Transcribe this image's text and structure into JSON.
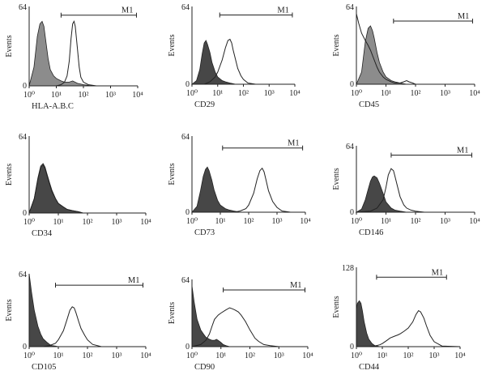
{
  "chart_data": [
    {
      "type": "area",
      "xlabel": "HLA-A.B.C",
      "ylabel": "Events",
      "xscale": "log",
      "xlim": [
        1,
        10000
      ],
      "ylim": [
        0,
        64
      ],
      "ytick_labels": [
        "0",
        "64"
      ],
      "xtick_labels": [
        "10⁰",
        "10¹",
        "10²",
        "10³",
        "10⁴"
      ],
      "marker": {
        "label": "M1",
        "range": [
          15,
          9000
        ],
        "y": 57
      },
      "series": [
        {
          "role": "control",
          "fill": "gray",
          "x": [
            1,
            1.5,
            2,
            2.5,
            3,
            3.5,
            4,
            5,
            6,
            8,
            10,
            15,
            20,
            30,
            40,
            60,
            100,
            200,
            500,
            10000
          ],
          "y": [
            0,
            15,
            40,
            50,
            52,
            48,
            38,
            22,
            13,
            8,
            6,
            4,
            3,
            3,
            4,
            2,
            1,
            0,
            0,
            0
          ]
        },
        {
          "role": "sample",
          "fill": "none",
          "x": [
            1,
            5,
            10,
            15,
            20,
            25,
            30,
            35,
            40,
            45,
            50,
            60,
            70,
            80,
            100,
            150,
            300,
            10000
          ],
          "y": [
            0,
            0,
            0,
            1,
            3,
            8,
            20,
            38,
            50,
            52,
            48,
            30,
            15,
            7,
            3,
            1,
            0,
            0
          ]
        }
      ]
    },
    {
      "type": "area",
      "xlabel": "CD29",
      "ylabel": "Events",
      "xscale": "log",
      "xlim": [
        1,
        10000
      ],
      "ylim": [
        0,
        64
      ],
      "ytick_labels": [
        "0",
        "64"
      ],
      "xtick_labels": [
        "10⁰",
        "10¹",
        "10²",
        "10³",
        "10⁴"
      ],
      "marker": {
        "label": "M1",
        "range": [
          12,
          8000
        ],
        "y": 57
      },
      "series": [
        {
          "role": "control",
          "fill": "dark",
          "x": [
            1,
            1.5,
            2,
            2.5,
            3,
            3.5,
            4,
            5,
            6,
            8,
            10,
            15,
            20,
            30,
            50,
            100,
            10000
          ],
          "y": [
            0,
            3,
            12,
            25,
            34,
            36,
            33,
            26,
            18,
            10,
            6,
            3,
            2,
            1,
            0,
            0,
            0
          ]
        },
        {
          "role": "sample",
          "fill": "none",
          "x": [
            1,
            3,
            5,
            8,
            10,
            15,
            20,
            25,
            30,
            35,
            40,
            50,
            60,
            80,
            100,
            150,
            300,
            10000
          ],
          "y": [
            0,
            0,
            2,
            6,
            10,
            20,
            30,
            36,
            37,
            34,
            28,
            20,
            13,
            7,
            4,
            1,
            0,
            0
          ]
        }
      ]
    },
    {
      "type": "area",
      "xlabel": "CD45",
      "ylabel": "Events",
      "xscale": "log",
      "xlim": [
        1,
        10000
      ],
      "ylim": [
        0,
        64
      ],
      "ytick_labels": [
        "0",
        "64"
      ],
      "xtick_labels": [
        "10⁰",
        "10¹",
        "10²",
        "10³",
        "10⁴"
      ],
      "marker": {
        "label": "M1",
        "range": [
          18,
          8500
        ],
        "y": 52
      },
      "series": [
        {
          "role": "control",
          "fill": "gray",
          "x": [
            1,
            1.5,
            2,
            2.5,
            3,
            3.5,
            4,
            5,
            6,
            8,
            10,
            15,
            20,
            30,
            50,
            100,
            10000
          ],
          "y": [
            0,
            10,
            35,
            46,
            48,
            44,
            38,
            26,
            18,
            10,
            6,
            3,
            2,
            1,
            0,
            0,
            0
          ]
        },
        {
          "role": "sample",
          "fill": "none",
          "x": [
            1,
            1.2,
            1.5,
            2,
            2.5,
            3,
            4,
            5,
            6,
            8,
            10,
            15,
            20,
            30,
            40,
            50,
            60,
            80,
            100,
            10000
          ],
          "y": [
            58,
            50,
            42,
            36,
            32,
            28,
            20,
            14,
            10,
            6,
            4,
            2,
            1,
            1,
            2,
            3,
            2,
            1,
            0,
            0
          ]
        }
      ]
    },
    {
      "type": "area",
      "xlabel": "CD34",
      "ylabel": "Events",
      "xscale": "log",
      "xlim": [
        1,
        10000
      ],
      "ylim": [
        0,
        64
      ],
      "ytick_labels": [
        "0",
        "64"
      ],
      "xtick_labels": [
        "10⁰",
        "10¹",
        "10²",
        "10³",
        "10⁴"
      ],
      "series": [
        {
          "role": "control",
          "fill": "dark",
          "x": [
            1,
            1.5,
            2,
            2.5,
            3,
            3.5,
            4,
            5,
            6,
            8,
            10,
            15,
            20,
            30,
            50,
            70,
            100,
            10000
          ],
          "y": [
            0,
            12,
            28,
            38,
            40,
            37,
            32,
            24,
            18,
            12,
            8,
            5,
            3,
            2,
            1,
            0,
            0,
            0
          ]
        },
        {
          "role": "sample",
          "fill": "none",
          "x": [
            1,
            1.5,
            2,
            2.5,
            3,
            3.5,
            4,
            5,
            6,
            8,
            10,
            15,
            20,
            30,
            50,
            70,
            100,
            10000
          ],
          "y": [
            0,
            12,
            29,
            39,
            41,
            38,
            33,
            25,
            19,
            12,
            8,
            5,
            3,
            2,
            1,
            0,
            0,
            0
          ]
        }
      ]
    },
    {
      "type": "area",
      "xlabel": "CD73",
      "ylabel": "Events",
      "xscale": "log",
      "xlim": [
        1,
        10000
      ],
      "ylim": [
        0,
        64
      ],
      "ytick_labels": [
        "0",
        "64"
      ],
      "xtick_labels": [
        "10⁰",
        "10¹",
        "10²",
        "10³",
        "10⁴"
      ],
      "marker": {
        "label": "M1",
        "range": [
          12,
          8000
        ],
        "y": 54
      },
      "series": [
        {
          "role": "control",
          "fill": "dark",
          "x": [
            1,
            1.5,
            2,
            2.5,
            3,
            3.5,
            4,
            5,
            6,
            8,
            10,
            15,
            20,
            30,
            50,
            100,
            10000
          ],
          "y": [
            0,
            5,
            18,
            30,
            36,
            38,
            35,
            27,
            19,
            10,
            6,
            3,
            2,
            1,
            0,
            0,
            0
          ]
        },
        {
          "role": "sample",
          "fill": "none",
          "x": [
            1,
            30,
            50,
            80,
            100,
            150,
            200,
            250,
            300,
            350,
            400,
            500,
            700,
            1000,
            1500,
            3000,
            10000
          ],
          "y": [
            0,
            0,
            1,
            3,
            6,
            16,
            28,
            35,
            37,
            34,
            28,
            18,
            9,
            4,
            1,
            0,
            0
          ]
        }
      ]
    },
    {
      "type": "area",
      "xlabel": "CD146",
      "ylabel": "Events",
      "xscale": "log",
      "xlim": [
        1,
        10000
      ],
      "ylim": [
        0,
        64
      ],
      "ytick_labels": [
        "0",
        "64"
      ],
      "xtick_labels": [
        "10⁰",
        "10¹",
        "10²",
        "10³",
        "10⁴"
      ],
      "marker": {
        "label": "M1",
        "range": [
          15,
          8000
        ],
        "y": 55
      },
      "series": [
        {
          "role": "control",
          "fill": "dark",
          "x": [
            1,
            1.5,
            2,
            2.5,
            3,
            3.5,
            4,
            5,
            6,
            8,
            10,
            15,
            20,
            30,
            50,
            100,
            10000
          ],
          "y": [
            0,
            3,
            12,
            22,
            30,
            34,
            35,
            33,
            28,
            18,
            10,
            4,
            2,
            1,
            0,
            0,
            0
          ]
        },
        {
          "role": "sample",
          "fill": "none",
          "x": [
            1,
            3,
            5,
            8,
            10,
            12,
            15,
            18,
            20,
            25,
            30,
            40,
            50,
            70,
            100,
            200,
            10000
          ],
          "y": [
            0,
            1,
            4,
            12,
            24,
            36,
            42,
            40,
            35,
            24,
            15,
            7,
            4,
            2,
            1,
            0,
            0
          ]
        }
      ]
    },
    {
      "type": "area",
      "xlabel": "CD105",
      "ylabel": "Events",
      "xscale": "log",
      "xlim": [
        1,
        10000
      ],
      "ylim": [
        0,
        64
      ],
      "ytick_labels": [
        "0",
        "64"
      ],
      "xtick_labels": [
        "10⁰",
        "10¹",
        "10²",
        "10³",
        "10⁴"
      ],
      "marker": {
        "label": "M1",
        "range": [
          8,
          8000
        ],
        "y": 54
      },
      "series": [
        {
          "role": "control",
          "fill": "dark",
          "x": [
            1,
            1.2,
            1.5,
            2,
            2.5,
            3,
            4,
            5,
            6,
            8,
            10,
            15,
            20,
            10000
          ],
          "y": [
            64,
            48,
            32,
            18,
            11,
            7,
            4,
            2,
            1,
            0.5,
            0,
            0,
            0,
            0
          ]
        },
        {
          "role": "sample",
          "fill": "none",
          "x": [
            1,
            3,
            5,
            8,
            10,
            15,
            20,
            25,
            30,
            35,
            40,
            50,
            60,
            80,
            100,
            150,
            300,
            10000
          ],
          "y": [
            0,
            0,
            1,
            3,
            6,
            14,
            24,
            32,
            35,
            34,
            30,
            22,
            16,
            10,
            6,
            2,
            0,
            0
          ]
        }
      ]
    },
    {
      "type": "area",
      "xlabel": "CD90",
      "ylabel": "Events",
      "xscale": "log",
      "xlim": [
        1,
        10000
      ],
      "ylim": [
        0,
        64
      ],
      "ytick_labels": [
        "0",
        "64"
      ],
      "xtick_labels": [
        "10⁰",
        "10¹",
        "10²",
        "10³",
        "10⁴"
      ],
      "marker": {
        "label": "M1",
        "range": [
          12,
          8000
        ],
        "y": 54
      },
      "series": [
        {
          "role": "control",
          "fill": "dark",
          "x": [
            1,
            1.2,
            1.5,
            2,
            2.5,
            3,
            4,
            5,
            6,
            7,
            8,
            10,
            12,
            15,
            20,
            30,
            10000
          ],
          "y": [
            58,
            42,
            26,
            16,
            12,
            9,
            7,
            6,
            6,
            7,
            6,
            4,
            2,
            1,
            0,
            0,
            0
          ]
        },
        {
          "role": "sample",
          "fill": "none",
          "x": [
            1,
            2,
            3,
            4,
            5,
            6,
            8,
            10,
            15,
            20,
            25,
            30,
            40,
            50,
            70,
            100,
            150,
            200,
            300,
            500,
            1000,
            10000
          ],
          "y": [
            0,
            2,
            6,
            12,
            20,
            26,
            30,
            32,
            35,
            37,
            36,
            35,
            33,
            30,
            24,
            16,
            8,
            5,
            2,
            1,
            0,
            0
          ]
        }
      ]
    },
    {
      "type": "area",
      "xlabel": "CD44",
      "ylabel": "Events",
      "xscale": "log",
      "xlim": [
        1,
        10000
      ],
      "ylim": [
        0,
        128
      ],
      "ytick_labels": [
        "0",
        "128"
      ],
      "xtick_labels": [
        "10⁰",
        "10¹",
        "10²",
        "10³",
        "10⁴"
      ],
      "marker": {
        "label": "M1",
        "range": [
          6,
          3000
        ],
        "y": 112
      },
      "series": [
        {
          "role": "control",
          "fill": "dark",
          "x": [
            1,
            1.1,
            1.3,
            1.5,
            1.7,
            2,
            2.5,
            3,
            4,
            5,
            6,
            8,
            10,
            10000
          ],
          "y": [
            60,
            70,
            74,
            70,
            58,
            40,
            22,
            12,
            5,
            2,
            1,
            0,
            0,
            0
          ]
        },
        {
          "role": "sample",
          "fill": "none",
          "x": [
            1,
            3,
            5,
            8,
            10,
            15,
            20,
            30,
            40,
            50,
            70,
            100,
            150,
            200,
            250,
            300,
            400,
            500,
            700,
            1000,
            2000,
            10000
          ],
          "y": [
            0,
            0,
            1,
            3,
            5,
            10,
            14,
            17,
            19,
            21,
            25,
            30,
            40,
            52,
            58,
            56,
            46,
            34,
            18,
            8,
            1,
            0
          ]
        }
      ]
    }
  ]
}
